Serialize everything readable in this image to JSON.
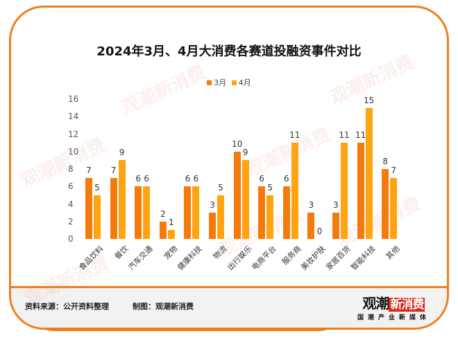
{
  "title": "2024年3月、4月大消费各赛道投融资事件对比",
  "legend": [
    {
      "label": "3月",
      "color": "#f57a0c"
    },
    {
      "label": "4月",
      "color": "#ffa310"
    }
  ],
  "footer": {
    "source": "资料来源：公开资料整理",
    "maker": "制图：观潮新消费",
    "logo_main": "观潮",
    "logo_red": "新消费",
    "logo_url": "tideshiht.com",
    "logo_sub": "国潮产业新媒体"
  },
  "watermark": {
    "text": "观潮新消费"
  },
  "chart_data": {
    "type": "bar",
    "title": "2024年3月、4月大消费各赛道投融资事件对比",
    "xlabel": "",
    "ylabel": "",
    "ylim": [
      0,
      16
    ],
    "yticks": [
      0,
      2,
      4,
      6,
      8,
      10,
      12,
      14,
      16
    ],
    "grid": false,
    "legend_position": "top",
    "categories": [
      "食品饮料",
      "餐饮",
      "汽车交通",
      "宠物",
      "健康科技",
      "物流",
      "出行娱乐",
      "电商平台",
      "服务商",
      "美妆护肤",
      "家居百货",
      "智能科技",
      "其他"
    ],
    "series": [
      {
        "name": "3月",
        "color": "#f57a0c",
        "values": [
          7,
          7,
          6,
          2,
          6,
          3,
          10,
          6,
          6,
          3,
          3,
          11,
          8
        ]
      },
      {
        "name": "4月",
        "color": "#ffa310",
        "values": [
          5,
          9,
          6,
          1,
          6,
          5,
          9,
          5,
          11,
          0,
          11,
          15,
          7
        ]
      }
    ]
  }
}
